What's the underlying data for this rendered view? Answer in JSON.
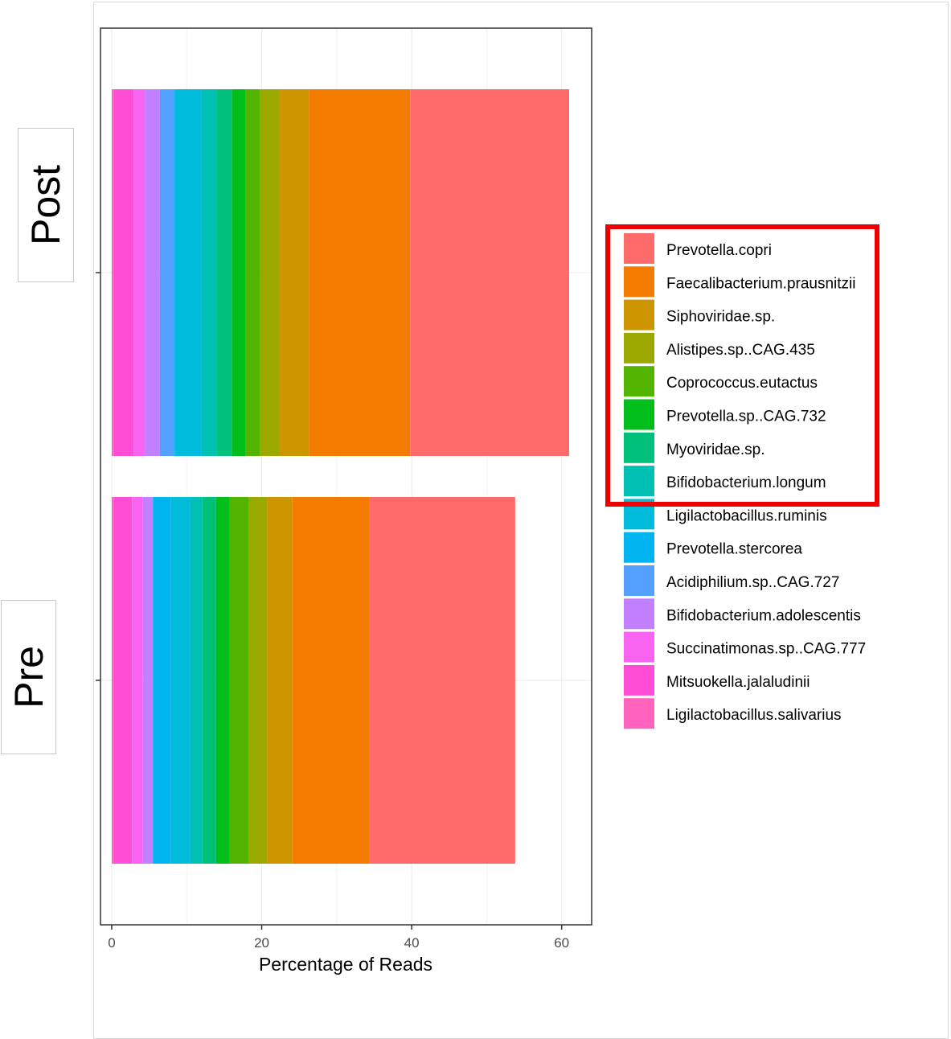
{
  "chart_data": {
    "type": "bar",
    "orientation": "horizontal",
    "stacked": true,
    "categories": [
      "Post",
      "Pre"
    ],
    "xlabel": "Percentage of Reads",
    "xlim": [
      -1.5,
      64
    ],
    "xticks": [
      0,
      20,
      40,
      60
    ],
    "grid": true,
    "legend_position": "right",
    "series": [
      {
        "name": "Ligilactobacillus.salivarius",
        "color": "#FF62BC",
        "values": [
          0.3,
          0.3
        ]
      },
      {
        "name": "Mitsuokella.jalaludinii",
        "color": "#FF4ED5",
        "values": [
          2.6,
          2.4
        ]
      },
      {
        "name": "Succinatimonas.sp..CAG.777",
        "color": "#F864EF",
        "values": [
          1.5,
          1.4
        ]
      },
      {
        "name": "Bifidobacterium.adolescentis",
        "color": "#C27FFF",
        "values": [
          2.0,
          1.3
        ]
      },
      {
        "name": "Acidiphilium.sp..CAG.727",
        "color": "#53A0FF",
        "values": [
          1.9,
          0.1
        ]
      },
      {
        "name": "Prevotella.stercorea",
        "color": "#00B4F0",
        "values": [
          0.1,
          2.4
        ]
      },
      {
        "name": "Ligilactobacillus.ruminis",
        "color": "#00BBDA",
        "values": [
          3.6,
          2.6
        ]
      },
      {
        "name": "Bifidobacterium.longum",
        "color": "#00C0B3",
        "values": [
          2.0,
          1.6
        ]
      },
      {
        "name": "Myoviridae.sp.",
        "color": "#00C07A",
        "values": [
          2.0,
          1.8
        ]
      },
      {
        "name": "Prevotella.sp..CAG.732",
        "color": "#02BE1B",
        "values": [
          1.8,
          1.8
        ]
      },
      {
        "name": "Coprococcus.eutactus",
        "color": "#53B400",
        "values": [
          2.0,
          2.6
        ]
      },
      {
        "name": "Alistipes.sp..CAG.435",
        "color": "#9AA800",
        "values": [
          2.6,
          2.4
        ]
      },
      {
        "name": "Siphoviridae.sp.",
        "color": "#CD9600",
        "values": [
          3.9,
          3.4
        ]
      },
      {
        "name": "Faecalibacterium.prausnitzii",
        "color": "#F37C00",
        "values": [
          13.5,
          10.3
        ]
      },
      {
        "name": "Prevotella.copri",
        "color": "#FF6B6B",
        "values": [
          21.2,
          19.4
        ]
      }
    ],
    "legend_order": [
      "Prevotella.copri",
      "Faecalibacterium.prausnitzii",
      "Siphoviridae.sp.",
      "Alistipes.sp..CAG.435",
      "Coprococcus.eutactus",
      "Prevotella.sp..CAG.732",
      "Myoviridae.sp.",
      "Bifidobacterium.longum",
      "Ligilactobacillus.ruminis",
      "Prevotella.stercorea",
      "Acidiphilium.sp..CAG.727",
      "Bifidobacterium.adolescentis",
      "Succinatimonas.sp..CAG.777",
      "Mitsuokella.jalaludinii",
      "Ligilactobacillus.salivarius"
    ],
    "highlight_box_color": "#EE0000"
  }
}
